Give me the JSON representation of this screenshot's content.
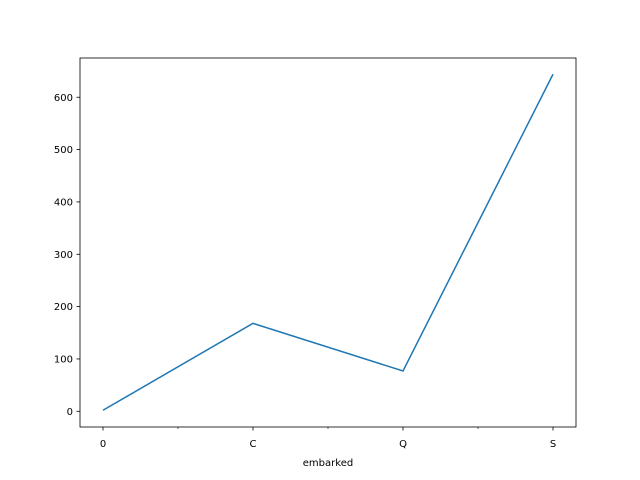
{
  "chart_data": {
    "type": "line",
    "categories": [
      "0",
      "C",
      "Q",
      "S"
    ],
    "values": [
      2,
      168,
      77,
      644
    ],
    "xlabel": "embarked",
    "ylabel": "",
    "ylim": [
      -30,
      675
    ],
    "yticks": [
      0,
      100,
      200,
      300,
      400,
      500,
      600
    ],
    "grid": false,
    "line_color": "#1f77b4"
  }
}
